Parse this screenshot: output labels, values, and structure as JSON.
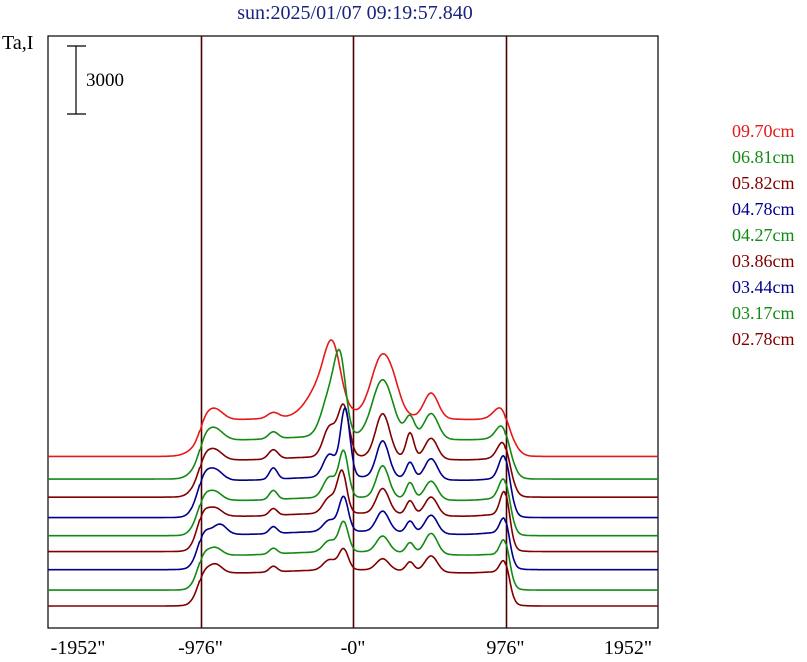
{
  "title": "sun:2025/01/07 09:19:57.840",
  "ylabel": "Ta,I",
  "scale_bar": {
    "label": "3000",
    "value": 3000
  },
  "colors": {
    "title": "#1a237e",
    "frame": "#000000",
    "marker_lines": "#4a0000",
    "red": "#e41a1a",
    "green": "#138a13",
    "maroon": "#800000",
    "navy": "#00008b"
  },
  "chart_data": {
    "type": "line",
    "title": "sun:2025/01/07 09:19:57.840",
    "ylabel": "Ta,I",
    "xlim": [
      -1952,
      1952
    ],
    "x_ticks": [
      {
        "value": -1952,
        "label": "-1952\""
      },
      {
        "value": -976,
        "label": "-976\""
      },
      {
        "value": 0,
        "label": "-0\""
      },
      {
        "value": 976,
        "label": "976\""
      },
      {
        "value": 1952,
        "label": "1952\""
      }
    ],
    "vertical_lines": [
      -976,
      0,
      976
    ],
    "grid": false,
    "legend_position": "right",
    "series": [
      {
        "name": "09.70cm",
        "color": "#e41a1a",
        "baseline": 8000,
        "profile": {
          "disk": 1800,
          "limb": 600,
          "peaks": [
            [
              -880,
              350,
              50
            ],
            [
              -510,
              250,
              35
            ],
            [
              -190,
              1500,
              90
            ],
            [
              -130,
              2100,
              50
            ],
            [
              190,
              2700,
              70
            ],
            [
              500,
              1100,
              45
            ],
            [
              270,
              300,
              40
            ],
            [
              976,
              900,
              55
            ]
          ]
        }
      },
      {
        "name": "06.81cm",
        "color": "#138a13",
        "baseline": 7000,
        "profile": {
          "disk": 1900,
          "limb": 700,
          "peaks": [
            [
              -880,
              400,
              50
            ],
            [
              -510,
              300,
              30
            ],
            [
              -140,
              2000,
              55
            ],
            [
              -80,
              2600,
              35
            ],
            [
              190,
              2500,
              65
            ],
            [
              365,
              900,
              30
            ],
            [
              500,
              1100,
              45
            ],
            [
              976,
              1100,
              45
            ]
          ]
        }
      },
      {
        "name": "05.82cm",
        "color": "#800000",
        "baseline": 6200,
        "profile": {
          "disk": 1800,
          "limb": 700,
          "peaks": [
            [
              -880,
              350,
              45
            ],
            [
              -510,
              400,
              30
            ],
            [
              -150,
              1300,
              40
            ],
            [
              -60,
              2200,
              35
            ],
            [
              190,
              1900,
              45
            ],
            [
              365,
              1100,
              25
            ],
            [
              500,
              900,
              40
            ],
            [
              976,
              1300,
              40
            ]
          ]
        }
      },
      {
        "name": "04.78cm",
        "color": "#00008b",
        "baseline": 5300,
        "profile": {
          "disk": 1800,
          "limb": 700,
          "peaks": [
            [
              -880,
              400,
              45
            ],
            [
              -510,
              500,
              25
            ],
            [
              -150,
              1000,
              40
            ],
            [
              -50,
              3000,
              30
            ],
            [
              190,
              1600,
              40
            ],
            [
              365,
              700,
              25
            ],
            [
              500,
              900,
              40
            ],
            [
              976,
              1700,
              35
            ]
          ]
        }
      },
      {
        "name": "04.27cm",
        "color": "#138a13",
        "baseline": 4500,
        "profile": {
          "disk": 1700,
          "limb": 700,
          "peaks": [
            [
              -880,
              300,
              40
            ],
            [
              -510,
              400,
              25
            ],
            [
              -150,
              900,
              40
            ],
            [
              -60,
              2000,
              30
            ],
            [
              190,
              1400,
              40
            ],
            [
              365,
              700,
              25
            ],
            [
              500,
              800,
              40
            ],
            [
              976,
              1500,
              35
            ]
          ]
        }
      },
      {
        "name": "03.86cm",
        "color": "#800000",
        "baseline": 3800,
        "profile": {
          "disk": 1700,
          "limb": 700,
          "peaks": [
            [
              -880,
              300,
              40
            ],
            [
              -510,
              300,
              25
            ],
            [
              -150,
              700,
              40
            ],
            [
              -70,
              1800,
              30
            ],
            [
              190,
              1100,
              40
            ],
            [
              365,
              600,
              25
            ],
            [
              500,
              800,
              40
            ],
            [
              976,
              1700,
              30
            ]
          ]
        }
      },
      {
        "name": "03.44cm",
        "color": "#00008b",
        "baseline": 3000,
        "profile": {
          "disk": 1700,
          "limb": 700,
          "peaks": [
            [
              -850,
              400,
              40
            ],
            [
              -510,
              300,
              25
            ],
            [
              -150,
              500,
              40
            ],
            [
              -60,
              1500,
              30
            ],
            [
              190,
              900,
              40
            ],
            [
              365,
              500,
              25
            ],
            [
              500,
              800,
              40
            ],
            [
              976,
              1300,
              30
            ]
          ]
        }
      },
      {
        "name": "03.17cm",
        "color": "#138a13",
        "baseline": 2100,
        "profile": {
          "disk": 1700,
          "limb": 600,
          "peaks": [
            [
              -880,
              300,
              40
            ],
            [
              -510,
              250,
              25
            ],
            [
              -150,
              500,
              40
            ],
            [
              -60,
              1300,
              30
            ],
            [
              190,
              700,
              40
            ],
            [
              365,
              450,
              25
            ],
            [
              500,
              900,
              40
            ],
            [
              976,
              1300,
              30
            ]
          ]
        }
      },
      {
        "name": "02.78cm",
        "color": "#800000",
        "baseline": 1400,
        "profile": {
          "disk": 1600,
          "limb": 600,
          "peaks": [
            [
              -880,
              350,
              40
            ],
            [
              -510,
              250,
              25
            ],
            [
              -150,
              450,
              40
            ],
            [
              -60,
              900,
              30
            ],
            [
              190,
              500,
              40
            ],
            [
              365,
              400,
              25
            ],
            [
              500,
              700,
              40
            ],
            [
              976,
              1100,
              30
            ]
          ]
        }
      }
    ]
  }
}
